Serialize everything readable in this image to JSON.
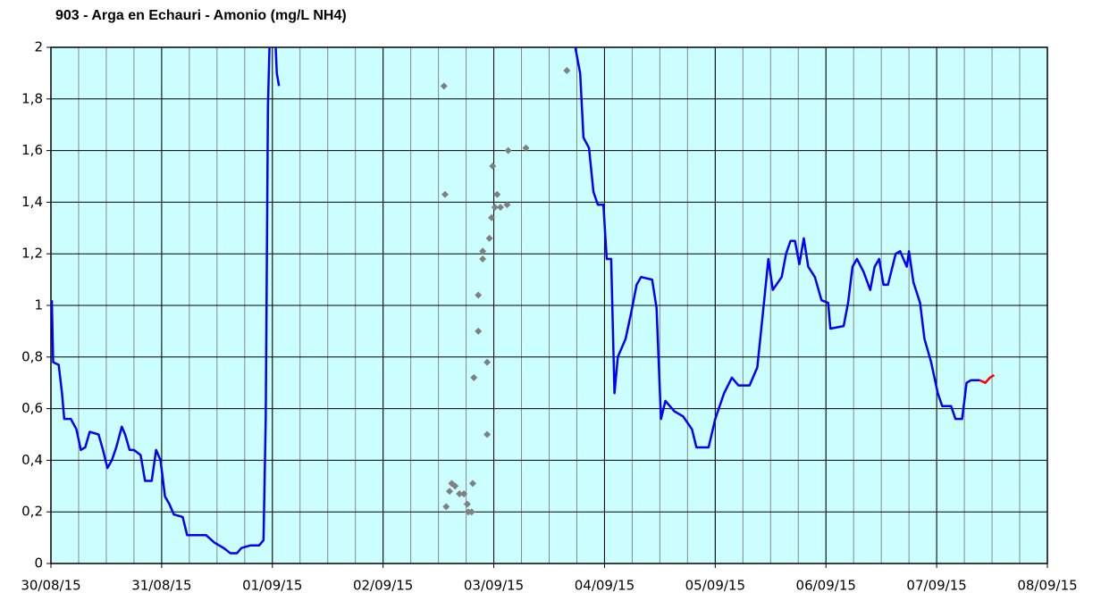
{
  "chart_data": {
    "type": "line",
    "title": "903 - Arga en Echauri - Amonio (mg/L NH4)",
    "background": "#ccffff",
    "minor_grid_step": 0.25,
    "xlim": [
      0,
      9
    ],
    "xticks": [
      {
        "value": 0,
        "label": "30/08/15"
      },
      {
        "value": 1,
        "label": "31/08/15"
      },
      {
        "value": 2,
        "label": "01/09/15"
      },
      {
        "value": 3,
        "label": "02/09/15"
      },
      {
        "value": 4,
        "label": "03/09/15"
      },
      {
        "value": 5,
        "label": "04/09/15"
      },
      {
        "value": 6,
        "label": "05/09/15"
      },
      {
        "value": 7,
        "label": "06/09/15"
      },
      {
        "value": 8,
        "label": "07/09/15"
      },
      {
        "value": 9,
        "label": "08/09/15"
      }
    ],
    "ylim": [
      0,
      2
    ],
    "yticks": [
      0,
      {
        "value": 0.2,
        "label": "0,2"
      },
      {
        "value": 0.4,
        "label": "0,4"
      },
      {
        "value": 0.6,
        "label": "0,6"
      },
      {
        "value": 0.8,
        "label": "0,8"
      },
      1,
      {
        "value": 1.2,
        "label": "1,2"
      },
      {
        "value": 1.4,
        "label": "1,4"
      },
      {
        "value": 1.6,
        "label": "1,6"
      },
      {
        "value": 1.8,
        "label": "1,8"
      },
      2
    ],
    "grid": true,
    "series": [
      {
        "color": "#0000ff",
        "style": "line",
        "x": [
          0.008,
          0.02,
          0.07,
          0.1,
          0.12,
          0.18,
          0.23,
          0.27,
          0.31,
          0.35,
          0.43,
          0.47,
          0.51,
          0.55,
          0.59,
          0.64,
          0.67,
          0.71,
          0.75,
          0.81,
          0.85,
          0.91,
          0.95,
          0.99,
          1.03,
          1.07,
          1.11,
          1.19,
          1.23,
          1.31,
          1.4,
          1.48,
          1.56,
          1.62,
          1.68,
          1.72,
          1.8,
          1.88,
          1.92,
          1.94,
          1.96,
          1.98,
          2.02,
          2.04,
          2.06,
          3.0,
          4.73,
          4.74,
          4.78,
          4.81,
          4.86,
          4.9,
          4.94,
          4.99,
          5.02,
          5.06,
          5.09,
          5.12,
          5.19,
          5.24,
          5.29,
          5.33,
          5.43,
          5.47,
          5.51,
          5.55,
          5.63,
          5.71,
          5.79,
          5.83,
          5.94,
          6.0,
          6.08,
          6.15,
          6.21,
          6.31,
          6.38,
          6.44,
          6.48,
          6.52,
          6.6,
          6.64,
          6.68,
          6.72,
          6.76,
          6.8,
          6.84,
          6.9,
          6.96,
          7.02,
          7.04,
          7.16,
          7.2,
          7.24,
          7.28,
          7.34,
          7.4,
          7.44,
          7.48,
          7.52,
          7.56,
          7.63,
          7.67,
          7.73,
          7.75,
          7.79,
          7.85,
          7.89,
          7.95,
          8.01,
          8.05,
          8.13,
          8.17,
          8.23,
          8.27,
          8.31,
          8.39
        ],
        "values": [
          1.02,
          0.78,
          0.77,
          0.66,
          0.56,
          0.56,
          0.52,
          0.44,
          0.45,
          0.51,
          0.5,
          0.44,
          0.37,
          0.4,
          0.45,
          0.53,
          0.5,
          0.44,
          0.44,
          0.42,
          0.32,
          0.32,
          0.44,
          0.4,
          0.26,
          0.23,
          0.19,
          0.18,
          0.11,
          0.11,
          0.11,
          0.08,
          0.06,
          0.04,
          0.04,
          0.06,
          0.07,
          0.07,
          0.09,
          0.56,
          1.77,
          2.1,
          2.1,
          1.9,
          1.85,
          null,
          2.1,
          1.99,
          1.9,
          1.65,
          1.61,
          1.44,
          1.39,
          1.39,
          1.18,
          1.18,
          0.66,
          0.8,
          0.87,
          0.97,
          1.08,
          1.11,
          1.1,
          0.99,
          0.56,
          0.63,
          0.59,
          0.57,
          0.52,
          0.45,
          0.45,
          0.56,
          0.66,
          0.72,
          0.69,
          0.69,
          0.76,
          1.01,
          1.18,
          1.06,
          1.11,
          1.2,
          1.25,
          1.25,
          1.16,
          1.26,
          1.15,
          1.11,
          1.02,
          1.01,
          0.91,
          0.92,
          1.01,
          1.15,
          1.18,
          1.13,
          1.06,
          1.15,
          1.18,
          1.08,
          1.08,
          1.2,
          1.21,
          1.15,
          1.21,
          1.09,
          1.01,
          0.87,
          0.78,
          0.66,
          0.61,
          0.61,
          0.56,
          0.56,
          0.7,
          0.71,
          0.71
        ]
      },
      {
        "color": "#ff0000",
        "style": "line",
        "x": [
          8.39,
          8.44,
          8.48,
          8.52
        ],
        "values": [
          0.71,
          0.7,
          0.72,
          0.73
        ]
      },
      {
        "color": "#808080",
        "style": "points",
        "x": [
          3.55,
          3.56,
          3.57,
          3.6,
          3.62,
          3.65,
          3.69,
          3.73,
          3.76,
          3.77,
          3.8,
          3.81,
          3.82,
          3.86,
          3.86,
          3.9,
          3.9,
          3.94,
          3.94,
          3.96,
          3.98,
          3.99,
          4.01,
          4.03,
          4.06,
          4.12,
          4.13,
          4.29,
          4.66
        ],
        "values": [
          1.85,
          1.43,
          0.22,
          0.28,
          0.31,
          0.3,
          0.27,
          0.27,
          0.23,
          0.2,
          0.2,
          0.31,
          0.72,
          0.9,
          1.04,
          1.21,
          1.18,
          0.78,
          0.5,
          1.26,
          1.34,
          1.54,
          1.38,
          1.43,
          1.38,
          1.39,
          1.6,
          1.61,
          1.91
        ]
      }
    ]
  }
}
